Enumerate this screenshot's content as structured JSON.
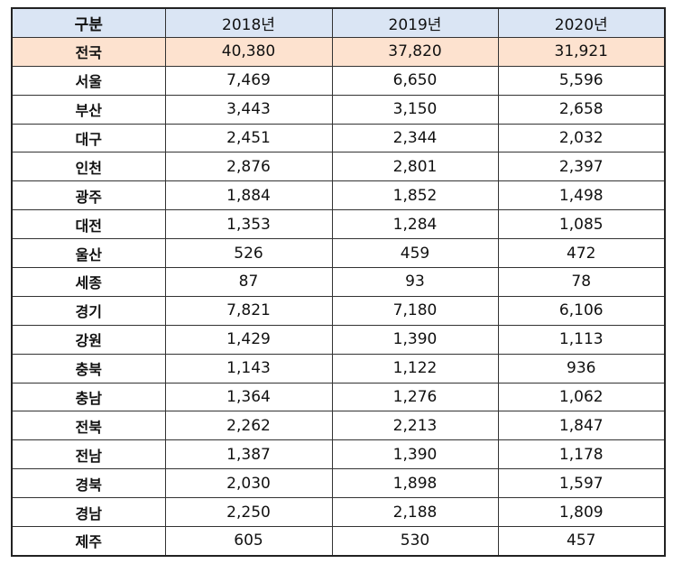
{
  "table": {
    "headers": [
      "구분",
      "2018년",
      "2019년",
      "2020년"
    ],
    "rows": [
      {
        "region": "전국",
        "values": [
          "40,380",
          "37,820",
          "31,921"
        ],
        "highlight": true
      },
      {
        "region": "서울",
        "values": [
          "7,469",
          "6,650",
          "5,596"
        ]
      },
      {
        "region": "부산",
        "values": [
          "3,443",
          "3,150",
          "2,658"
        ]
      },
      {
        "region": "대구",
        "values": [
          "2,451",
          "2,344",
          "2,032"
        ]
      },
      {
        "region": "인천",
        "values": [
          "2,876",
          "2,801",
          "2,397"
        ]
      },
      {
        "region": "광주",
        "values": [
          "1,884",
          "1,852",
          "1,498"
        ]
      },
      {
        "region": "대전",
        "values": [
          "1,353",
          "1,284",
          "1,085"
        ]
      },
      {
        "region": "울산",
        "values": [
          "526",
          "459",
          "472"
        ]
      },
      {
        "region": "세종",
        "values": [
          "87",
          "93",
          "78"
        ]
      },
      {
        "region": "경기",
        "values": [
          "7,821",
          "7,180",
          "6,106"
        ]
      },
      {
        "region": "강원",
        "values": [
          "1,429",
          "1,390",
          "1,113"
        ]
      },
      {
        "region": "충북",
        "values": [
          "1,143",
          "1,122",
          "936"
        ]
      },
      {
        "region": "충남",
        "values": [
          "1,364",
          "1,276",
          "1,062"
        ]
      },
      {
        "region": "전북",
        "values": [
          "2,262",
          "2,213",
          "1,847"
        ]
      },
      {
        "region": "전남",
        "values": [
          "1,387",
          "1,390",
          "1,178"
        ]
      },
      {
        "region": "경북",
        "values": [
          "2,030",
          "1,898",
          "1,597"
        ]
      },
      {
        "region": "경남",
        "values": [
          "2,250",
          "2,188",
          "1,809"
        ]
      },
      {
        "region": "제주",
        "values": [
          "605",
          "530",
          "457"
        ]
      }
    ]
  },
  "colors": {
    "header_bg": "#dae5f4",
    "highlight_bg": "#fde2cf",
    "border": "#333333"
  }
}
